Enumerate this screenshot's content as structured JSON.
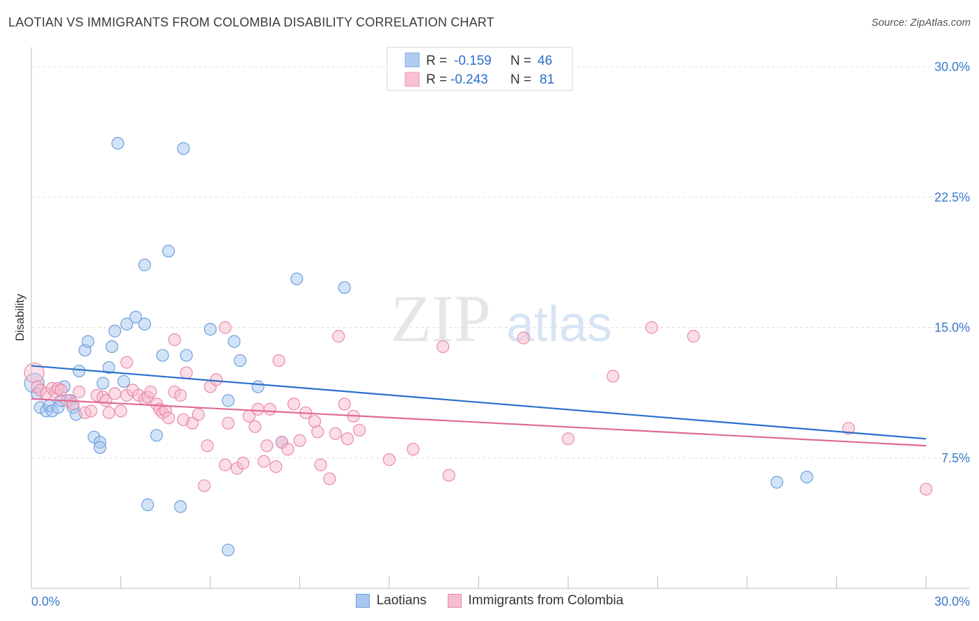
{
  "title": "LAOTIAN VS IMMIGRANTS FROM COLOMBIA DISABILITY CORRELATION CHART",
  "source": "Source: ZipAtlas.com",
  "watermark": {
    "zip": "ZIP",
    "atlas": "atlas"
  },
  "colors": {
    "laotians_fill": "#a8c8f0",
    "laotians_stroke": "#6e9fdc",
    "laotians_line": "#2a6fcc",
    "colombia_fill": "#f8bcd0",
    "colombia_stroke": "#e88aaa",
    "colombia_line": "#e06a92",
    "axis_text": "#3a78c8",
    "grid": "#dddddd"
  },
  "legend_top": {
    "rows": [
      {
        "r_label": "R = ",
        "r_value": "-0.159",
        "n_label": "N = ",
        "n_value": "46"
      },
      {
        "r_label": "R = ",
        "r_value": "-0.243",
        "n_label": "N = ",
        "n_value": "81"
      }
    ]
  },
  "legend_bottom": {
    "laotians": "Laotians",
    "colombia": "Immigrants from Colombia"
  },
  "chart_data": {
    "type": "scatter",
    "ylabel": "Disability",
    "xlim": [
      0,
      30
    ],
    "ylim": [
      0,
      30
    ],
    "x_tick_labels": [
      "0.0%",
      "30.0%"
    ],
    "y_tick_labels": [
      "7.5%",
      "15.0%",
      "22.5%",
      "30.0%"
    ],
    "y_ticks": [
      7.5,
      15,
      22.5,
      30
    ],
    "x_ticks": [
      0,
      3,
      6,
      9,
      12,
      15,
      18,
      21,
      24,
      27,
      30
    ],
    "grid": true,
    "series": [
      {
        "name": "Laotians",
        "trend": [
          [
            0,
            12.8
          ],
          [
            30,
            8.6
          ]
        ],
        "points": [
          [
            0.1,
            11.8
          ],
          [
            0.2,
            11.2
          ],
          [
            0.3,
            10.4
          ],
          [
            0.5,
            10.2
          ],
          [
            0.6,
            10.5
          ],
          [
            0.7,
            10.2
          ],
          [
            0.9,
            10.4
          ],
          [
            1.0,
            10.8
          ],
          [
            1.1,
            11.6
          ],
          [
            1.3,
            10.8
          ],
          [
            1.4,
            10.4
          ],
          [
            1.5,
            10.0
          ],
          [
            1.6,
            12.5
          ],
          [
            1.8,
            13.7
          ],
          [
            1.9,
            14.2
          ],
          [
            2.1,
            8.7
          ],
          [
            2.3,
            8.4
          ],
          [
            2.3,
            8.1
          ],
          [
            2.4,
            11.8
          ],
          [
            2.6,
            12.7
          ],
          [
            2.7,
            13.9
          ],
          [
            2.8,
            14.8
          ],
          [
            2.9,
            25.6
          ],
          [
            3.1,
            11.9
          ],
          [
            3.2,
            15.2
          ],
          [
            3.5,
            15.6
          ],
          [
            3.8,
            15.2
          ],
          [
            3.8,
            18.6
          ],
          [
            3.9,
            4.8
          ],
          [
            4.2,
            8.8
          ],
          [
            4.4,
            13.4
          ],
          [
            4.6,
            19.4
          ],
          [
            5.0,
            4.7
          ],
          [
            5.1,
            25.3
          ],
          [
            5.2,
            13.4
          ],
          [
            6.0,
            14.9
          ],
          [
            6.6,
            10.8
          ],
          [
            6.6,
            2.2
          ],
          [
            6.8,
            14.2
          ],
          [
            7.0,
            13.1
          ],
          [
            7.6,
            11.6
          ],
          [
            8.4,
            8.4
          ],
          [
            8.9,
            17.8
          ],
          [
            10.5,
            17.3
          ],
          [
            25.0,
            6.1
          ],
          [
            26.0,
            6.4
          ]
        ]
      },
      {
        "name": "Immigrants from Colombia",
        "trend": [
          [
            0,
            10.9
          ],
          [
            30,
            8.2
          ]
        ],
        "points": [
          [
            0.1,
            12.4
          ],
          [
            0.2,
            11.6
          ],
          [
            0.3,
            11.4
          ],
          [
            0.5,
            11.2
          ],
          [
            0.7,
            11.5
          ],
          [
            0.8,
            11.3
          ],
          [
            0.9,
            11.5
          ],
          [
            1.0,
            11.4
          ],
          [
            1.2,
            10.8
          ],
          [
            1.4,
            10.6
          ],
          [
            1.6,
            11.3
          ],
          [
            1.8,
            10.1
          ],
          [
            2.0,
            10.2
          ],
          [
            2.2,
            11.1
          ],
          [
            2.4,
            11.0
          ],
          [
            2.5,
            10.8
          ],
          [
            2.6,
            10.1
          ],
          [
            2.8,
            11.2
          ],
          [
            3.0,
            10.2
          ],
          [
            3.2,
            11.1
          ],
          [
            3.2,
            13.0
          ],
          [
            3.4,
            11.4
          ],
          [
            3.6,
            11.1
          ],
          [
            3.8,
            10.9
          ],
          [
            3.9,
            11.0
          ],
          [
            4.0,
            11.3
          ],
          [
            4.2,
            10.6
          ],
          [
            4.3,
            10.3
          ],
          [
            4.4,
            10.1
          ],
          [
            4.5,
            10.2
          ],
          [
            4.6,
            9.8
          ],
          [
            4.8,
            11.3
          ],
          [
            4.8,
            14.3
          ],
          [
            5.0,
            11.1
          ],
          [
            5.1,
            9.7
          ],
          [
            5.2,
            12.4
          ],
          [
            5.4,
            9.5
          ],
          [
            5.6,
            10.0
          ],
          [
            5.8,
            5.9
          ],
          [
            5.9,
            8.2
          ],
          [
            6.0,
            11.6
          ],
          [
            6.2,
            12.0
          ],
          [
            6.5,
            15.0
          ],
          [
            6.5,
            7.1
          ],
          [
            6.6,
            9.5
          ],
          [
            6.9,
            6.9
          ],
          [
            7.1,
            7.2
          ],
          [
            7.3,
            9.9
          ],
          [
            7.5,
            9.3
          ],
          [
            7.6,
            10.3
          ],
          [
            7.8,
            7.3
          ],
          [
            7.9,
            8.2
          ],
          [
            8.0,
            10.3
          ],
          [
            8.2,
            7.0
          ],
          [
            8.3,
            13.1
          ],
          [
            8.4,
            8.4
          ],
          [
            8.6,
            8.0
          ],
          [
            8.8,
            10.6
          ],
          [
            9.0,
            8.5
          ],
          [
            9.2,
            10.1
          ],
          [
            9.5,
            9.6
          ],
          [
            9.6,
            9.0
          ],
          [
            9.7,
            7.1
          ],
          [
            10.0,
            6.3
          ],
          [
            10.2,
            8.9
          ],
          [
            10.3,
            14.5
          ],
          [
            10.5,
            10.6
          ],
          [
            10.6,
            8.6
          ],
          [
            10.8,
            9.9
          ],
          [
            11.0,
            9.1
          ],
          [
            12.0,
            7.4
          ],
          [
            12.8,
            8.0
          ],
          [
            13.8,
            13.9
          ],
          [
            14.0,
            6.5
          ],
          [
            16.5,
            14.4
          ],
          [
            18.0,
            8.6
          ],
          [
            19.5,
            12.2
          ],
          [
            20.8,
            15.0
          ],
          [
            22.2,
            14.5
          ],
          [
            27.4,
            9.2
          ],
          [
            30.0,
            5.7
          ]
        ]
      }
    ]
  }
}
